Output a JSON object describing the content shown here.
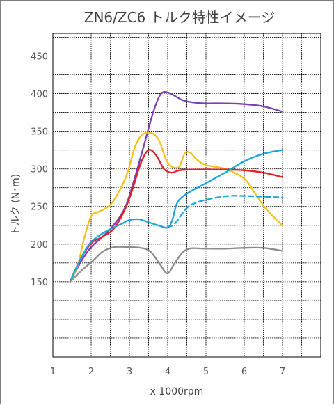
{
  "chart_data": {
    "type": "line",
    "title": "ZN6/ZC6 トルク特性イメージ",
    "xlabel": "x 1000rpm",
    "ylabel": "トルク (N･m)",
    "xlim": [
      1,
      8
    ],
    "ylim": [
      50,
      480
    ],
    "x_ticks": [
      1,
      2,
      3,
      4,
      5,
      6,
      7
    ],
    "y_ticks": [
      150,
      200,
      250,
      300,
      350,
      400,
      450
    ],
    "grid": true,
    "legend": "none",
    "series": [
      {
        "color": "#7b3fb5",
        "style": "solid",
        "points": [
          [
            1.45,
            150
          ],
          [
            1.75,
            178
          ],
          [
            2.0,
            196
          ],
          [
            2.3,
            210
          ],
          [
            2.6,
            226
          ],
          [
            2.9,
            250
          ],
          [
            3.15,
            290
          ],
          [
            3.4,
            335
          ],
          [
            3.62,
            375
          ],
          [
            3.8,
            398
          ],
          [
            3.95,
            402
          ],
          [
            4.15,
            398
          ],
          [
            4.4,
            391
          ],
          [
            4.7,
            388
          ],
          [
            5.0,
            387
          ],
          [
            5.5,
            387
          ],
          [
            6.0,
            386
          ],
          [
            6.5,
            383
          ],
          [
            7.0,
            376
          ]
        ]
      },
      {
        "color": "#f5c018",
        "style": "solid",
        "points": [
          [
            1.45,
            150
          ],
          [
            1.65,
            172
          ],
          [
            1.82,
            208
          ],
          [
            2.0,
            237
          ],
          [
            2.2,
            243
          ],
          [
            2.5,
            252
          ],
          [
            2.75,
            272
          ],
          [
            2.95,
            295
          ],
          [
            3.15,
            330
          ],
          [
            3.35,
            346
          ],
          [
            3.6,
            347
          ],
          [
            3.78,
            337
          ],
          [
            3.95,
            313
          ],
          [
            4.1,
            303
          ],
          [
            4.3,
            303
          ],
          [
            4.45,
            321
          ],
          [
            4.6,
            321
          ],
          [
            4.75,
            313
          ],
          [
            5.0,
            305
          ],
          [
            5.5,
            300
          ],
          [
            6.0,
            287
          ],
          [
            6.3,
            266
          ],
          [
            6.6,
            245
          ],
          [
            7.0,
            225
          ]
        ]
      },
      {
        "color": "#e81d1d",
        "style": "solid",
        "points": [
          [
            1.45,
            150
          ],
          [
            1.7,
            178
          ],
          [
            2.0,
            201
          ],
          [
            2.3,
            210
          ],
          [
            2.6,
            221
          ],
          [
            2.9,
            248
          ],
          [
            3.1,
            276
          ],
          [
            3.3,
            308
          ],
          [
            3.5,
            325
          ],
          [
            3.7,
            318
          ],
          [
            3.9,
            300
          ],
          [
            4.1,
            295
          ],
          [
            4.3,
            298
          ],
          [
            4.6,
            299
          ],
          [
            5.0,
            299
          ],
          [
            5.5,
            299
          ],
          [
            6.0,
            298
          ],
          [
            6.5,
            295
          ],
          [
            7.0,
            289
          ]
        ]
      },
      {
        "color": "#1aa7e0",
        "style": "solid",
        "points": [
          [
            1.45,
            150
          ],
          [
            1.7,
            178
          ],
          [
            1.95,
            200
          ],
          [
            2.2,
            211
          ],
          [
            2.5,
            220
          ],
          [
            2.8,
            227
          ],
          [
            3.0,
            232
          ],
          [
            3.25,
            233
          ],
          [
            3.5,
            229
          ],
          [
            3.75,
            225
          ],
          [
            4.0,
            222
          ],
          [
            4.12,
            232
          ],
          [
            4.25,
            255
          ],
          [
            4.5,
            267
          ],
          [
            5.0,
            281
          ],
          [
            5.5,
            295
          ],
          [
            6.0,
            310
          ],
          [
            6.5,
            320
          ],
          [
            7.0,
            325
          ]
        ]
      },
      {
        "color": "#1aa7e0",
        "style": "dashed",
        "points": [
          [
            4.0,
            222
          ],
          [
            4.2,
            228
          ],
          [
            4.5,
            248
          ],
          [
            4.8,
            256
          ],
          [
            5.2,
            261
          ],
          [
            5.6,
            264
          ],
          [
            6.0,
            264
          ],
          [
            6.5,
            263
          ],
          [
            7.0,
            262
          ]
        ]
      },
      {
        "color": "#8c8c8c",
        "style": "solid",
        "points": [
          [
            1.45,
            150
          ],
          [
            1.75,
            165
          ],
          [
            2.05,
            178
          ],
          [
            2.3,
            190
          ],
          [
            2.6,
            196
          ],
          [
            3.0,
            196
          ],
          [
            3.3,
            195
          ],
          [
            3.55,
            190
          ],
          [
            3.8,
            173
          ],
          [
            3.95,
            162
          ],
          [
            4.05,
            163
          ],
          [
            4.2,
            176
          ],
          [
            4.5,
            193
          ],
          [
            5.0,
            194
          ],
          [
            5.5,
            194
          ],
          [
            6.0,
            195
          ],
          [
            6.5,
            195
          ],
          [
            7.0,
            191
          ]
        ]
      }
    ]
  }
}
